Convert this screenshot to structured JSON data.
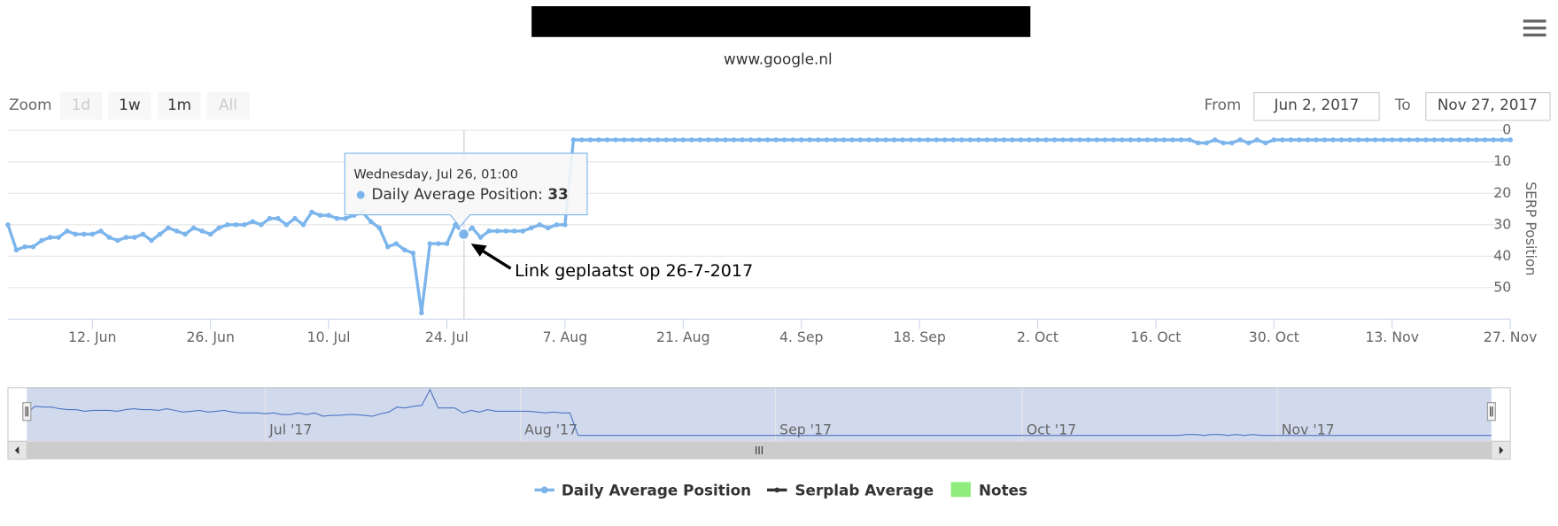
{
  "chart_data": {
    "type": "line",
    "subtitle": "www.google.nl",
    "zoom": {
      "label": "Zoom",
      "buttons": [
        "1d",
        "1w",
        "1m",
        "All"
      ],
      "disabled": [
        "1d",
        "All"
      ]
    },
    "range": {
      "from_label": "From",
      "from": "Jun 2, 2017",
      "to_label": "To",
      "to": "Nov 27, 2017"
    },
    "y_axis_title": "SERP Position",
    "reversed": true,
    "grid": true,
    "ylim": [
      0,
      60
    ],
    "yticks": [
      0,
      10,
      20,
      30,
      40,
      50
    ],
    "xlim": [
      "2017-06-02",
      "2017-11-27"
    ],
    "xticks": [
      {
        "value": "2017-06-12",
        "label": "12. Jun"
      },
      {
        "value": "2017-06-26",
        "label": "26. Jun"
      },
      {
        "value": "2017-07-10",
        "label": "10. Jul"
      },
      {
        "value": "2017-07-24",
        "label": "24. Jul"
      },
      {
        "value": "2017-08-07",
        "label": "7. Aug"
      },
      {
        "value": "2017-08-21",
        "label": "21. Aug"
      },
      {
        "value": "2017-09-04",
        "label": "4. Sep"
      },
      {
        "value": "2017-09-18",
        "label": "18. Sep"
      },
      {
        "value": "2017-10-02",
        "label": "2. Oct"
      },
      {
        "value": "2017-10-16",
        "label": "16. Oct"
      },
      {
        "value": "2017-10-30",
        "label": "30. Oct"
      },
      {
        "value": "2017-11-13",
        "label": "13. Nov"
      },
      {
        "value": "2017-11-27",
        "label": "27. Nov"
      }
    ],
    "navigator_xticks": [
      {
        "value": "2017-07-01",
        "label": "Jul '17"
      },
      {
        "value": "2017-08-01",
        "label": "Aug '17"
      },
      {
        "value": "2017-09-01",
        "label": "Sep '17"
      },
      {
        "value": "2017-10-01",
        "label": "Oct '17"
      },
      {
        "value": "2017-11-01",
        "label": "Nov '17"
      }
    ],
    "x": [
      "2017-06-02",
      "2017-06-03",
      "2017-06-04",
      "2017-06-05",
      "2017-06-06",
      "2017-06-07",
      "2017-06-08",
      "2017-06-09",
      "2017-06-10",
      "2017-06-11",
      "2017-06-12",
      "2017-06-13",
      "2017-06-14",
      "2017-06-15",
      "2017-06-16",
      "2017-06-17",
      "2017-06-18",
      "2017-06-19",
      "2017-06-20",
      "2017-06-21",
      "2017-06-22",
      "2017-06-23",
      "2017-06-24",
      "2017-06-25",
      "2017-06-26",
      "2017-06-27",
      "2017-06-28",
      "2017-06-29",
      "2017-06-30",
      "2017-07-01",
      "2017-07-02",
      "2017-07-03",
      "2017-07-04",
      "2017-07-05",
      "2017-07-06",
      "2017-07-07",
      "2017-07-08",
      "2017-07-09",
      "2017-07-10",
      "2017-07-11",
      "2017-07-12",
      "2017-07-13",
      "2017-07-14",
      "2017-07-15",
      "2017-07-16",
      "2017-07-17",
      "2017-07-18",
      "2017-07-19",
      "2017-07-20",
      "2017-07-21",
      "2017-07-22",
      "2017-07-23",
      "2017-07-24",
      "2017-07-25",
      "2017-07-26",
      "2017-07-27",
      "2017-07-28",
      "2017-07-29",
      "2017-07-30",
      "2017-07-31",
      "2017-08-01",
      "2017-08-02",
      "2017-08-03",
      "2017-08-04",
      "2017-08-05",
      "2017-08-06",
      "2017-08-07",
      "2017-08-08",
      "2017-08-09",
      "2017-08-10",
      "2017-08-11",
      "2017-08-12",
      "2017-08-13",
      "2017-08-14",
      "2017-08-15",
      "2017-08-16",
      "2017-08-17",
      "2017-08-18",
      "2017-08-19",
      "2017-08-20",
      "2017-08-21",
      "2017-08-22",
      "2017-08-23",
      "2017-08-24",
      "2017-08-25",
      "2017-08-26",
      "2017-08-27",
      "2017-08-28",
      "2017-08-29",
      "2017-08-30",
      "2017-08-31",
      "2017-09-01",
      "2017-09-02",
      "2017-09-03",
      "2017-09-04",
      "2017-09-05",
      "2017-09-06",
      "2017-09-07",
      "2017-09-08",
      "2017-09-09",
      "2017-09-10",
      "2017-09-11",
      "2017-09-12",
      "2017-09-13",
      "2017-09-14",
      "2017-09-15",
      "2017-09-16",
      "2017-09-17",
      "2017-09-18",
      "2017-09-19",
      "2017-09-20",
      "2017-09-21",
      "2017-09-22",
      "2017-09-23",
      "2017-09-24",
      "2017-09-25",
      "2017-09-26",
      "2017-09-27",
      "2017-09-28",
      "2017-09-29",
      "2017-09-30",
      "2017-10-01",
      "2017-10-02",
      "2017-10-03",
      "2017-10-04",
      "2017-10-05",
      "2017-10-06",
      "2017-10-07",
      "2017-10-08",
      "2017-10-09",
      "2017-10-10",
      "2017-10-11",
      "2017-10-12",
      "2017-10-13",
      "2017-10-14",
      "2017-10-15",
      "2017-10-16",
      "2017-10-17",
      "2017-10-18",
      "2017-10-19",
      "2017-10-20",
      "2017-10-21",
      "2017-10-22",
      "2017-10-23",
      "2017-10-24",
      "2017-10-25",
      "2017-10-26",
      "2017-10-27",
      "2017-10-28",
      "2017-10-29",
      "2017-10-30",
      "2017-10-31",
      "2017-11-01",
      "2017-11-02",
      "2017-11-03",
      "2017-11-04",
      "2017-11-05",
      "2017-11-06",
      "2017-11-07",
      "2017-11-08",
      "2017-11-09",
      "2017-11-10",
      "2017-11-11",
      "2017-11-12",
      "2017-11-13",
      "2017-11-14",
      "2017-11-15",
      "2017-11-16",
      "2017-11-17",
      "2017-11-18",
      "2017-11-19",
      "2017-11-20",
      "2017-11-21",
      "2017-11-22",
      "2017-11-23",
      "2017-11-24",
      "2017-11-25",
      "2017-11-26",
      "2017-11-27"
    ],
    "series": [
      {
        "name": "Daily Average Position",
        "color": "#7cb5ec",
        "values": [
          30,
          38,
          37,
          37,
          35,
          34,
          34,
          32,
          33,
          33,
          33,
          32,
          34,
          35,
          34,
          34,
          33,
          35,
          33,
          31,
          32,
          33,
          31,
          32,
          33,
          31,
          30,
          30,
          30,
          29,
          30,
          28,
          28,
          30,
          28,
          30,
          26,
          27,
          27,
          28,
          28,
          27,
          26,
          29,
          31,
          37,
          36,
          38,
          39,
          58,
          36,
          36,
          36,
          30,
          33,
          31,
          34,
          32,
          32,
          32,
          32,
          32,
          31,
          30,
          31,
          30,
          30,
          3,
          3,
          3,
          3,
          3,
          3,
          3,
          3,
          3,
          3,
          3,
          3,
          3,
          3,
          3,
          3,
          3,
          3,
          3,
          3,
          3,
          3,
          3,
          3,
          3,
          3,
          3,
          3,
          3,
          3,
          3,
          3,
          3,
          3,
          3,
          3,
          3,
          3,
          3,
          3,
          3,
          3,
          3,
          3,
          3,
          3,
          3,
          3,
          3,
          3,
          3,
          3,
          3,
          3,
          3,
          3,
          3,
          3,
          3,
          3,
          3,
          3,
          3,
          3,
          3,
          3,
          3,
          3,
          3,
          3,
          3,
          3,
          3,
          3,
          4,
          4,
          3,
          4,
          4,
          3,
          4,
          3,
          4,
          3,
          3,
          3,
          3,
          3,
          3,
          3,
          3,
          3,
          3,
          3,
          3,
          3,
          3,
          3,
          3,
          3,
          3,
          3,
          3,
          3,
          3,
          3,
          3,
          3,
          3,
          3,
          3,
          3
        ]
      }
    ],
    "legend_items": [
      {
        "name": "Serplab Average",
        "color": "#333333"
      },
      {
        "name": "Notes",
        "color": "#90ed7d"
      }
    ],
    "tooltip": {
      "header": "Wednesday, Jul 26, 01:00",
      "label": "Daily Average Position:",
      "point": "2017-07-26"
    },
    "annotation": {
      "text": "Link geplaatst op 26-7-2017"
    }
  }
}
